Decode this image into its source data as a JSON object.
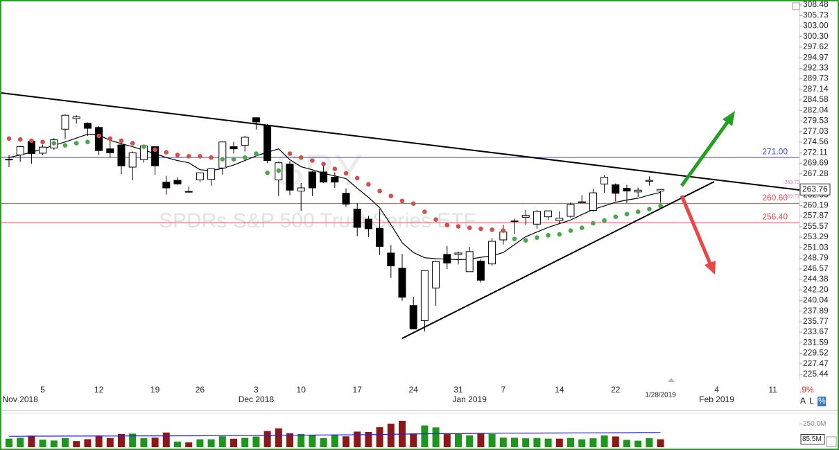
{
  "chart_data": {
    "type": "candlestick",
    "watermark": "SPDRs S&P 500 Trust Series ETF",
    "symbol": "SPY",
    "log_scale": true,
    "categories": [
      null,
      null,
      null,
      "5",
      null,
      null,
      null,
      null,
      "12",
      null,
      null,
      null,
      null,
      "19",
      null,
      null,
      null,
      "26",
      null,
      null,
      null,
      null,
      "3",
      null,
      null,
      null,
      "10",
      null,
      null,
      null,
      null,
      "17",
      null,
      null,
      null,
      null,
      "24",
      null,
      null,
      null,
      "31",
      null,
      null,
      null,
      "7",
      null,
      null,
      null,
      null,
      "14",
      null,
      null,
      null,
      null,
      "22",
      null,
      null,
      null,
      null,
      null,
      null,
      null,
      null,
      "4",
      null,
      null,
      null,
      null,
      "11",
      null
    ],
    "months": [
      null,
      "Nov 2018",
      null,
      null,
      null,
      null,
      null,
      null,
      null,
      null,
      null,
      null,
      null,
      null,
      null,
      null,
      null,
      null,
      null,
      null,
      null,
      null,
      "Dec 2018",
      null,
      null,
      null,
      null,
      null,
      null,
      null,
      null,
      null,
      null,
      null,
      null,
      null,
      null,
      null,
      null,
      null,
      null,
      "Jan 2019",
      null,
      null,
      null,
      null,
      null,
      null,
      null,
      null,
      null,
      null,
      null,
      null,
      null,
      null,
      null,
      null,
      "1/28/2019",
      null,
      null,
      null,
      null,
      "Feb 2019",
      null,
      null,
      null,
      null,
      null,
      null
    ],
    "open": [
      270.5,
      271.6,
      274.8,
      272.0,
      273.2,
      277.6,
      280.1,
      279.0,
      278.0,
      273.0,
      273.9,
      268.8,
      270.5,
      273.5,
      265.4,
      265.8,
      263.2,
      265.9,
      266.0,
      268.6,
      273.5,
      273.8,
      280.3,
      278.4,
      265.9,
      269.5,
      263.4,
      267.7,
      267.7,
      266.5,
      262.9,
      259.4,
      257.2,
      255.2,
      249.9,
      246.7,
      239.0,
      235.97,
      242.6,
      249.6,
      249.6,
      245.98,
      248.2,
      247.6,
      252.7,
      256.8,
      257.6,
      256.1,
      257.7,
      256.9,
      257.8,
      260.8,
      259.1,
      264.98,
      264.8,
      264.0,
      263.2,
      265.6,
      263.4,
      null,
      null,
      null,
      null,
      null,
      null,
      null,
      null,
      null,
      null,
      null
    ],
    "high": [
      271.5,
      273.7,
      275.2,
      274.0,
      275.5,
      281.1,
      280.9,
      279.2,
      278.3,
      275.0,
      274.3,
      272.4,
      274.0,
      273.6,
      266.8,
      266.5,
      264.4,
      267.6,
      268.5,
      274.7,
      274.6,
      276.0,
      280.4,
      278.8,
      269.97,
      270.2,
      265.2,
      267.9,
      269.8,
      267.6,
      264.0,
      260.7,
      257.95,
      259.4,
      251.6,
      249.7,
      240.8,
      246.2,
      248.3,
      251.4,
      250.2,
      251.2,
      248.6,
      253.1,
      255.95,
      257.3,
      259.2,
      259.2,
      259.0,
      258.9,
      260.9,
      262.5,
      263.9,
      266.98,
      265.1,
      264.8,
      264.2,
      266.7,
      263.8,
      null,
      null,
      null,
      null,
      null,
      null,
      null,
      null,
      null,
      null,
      null
    ],
    "low": [
      268.8,
      270.0,
      269.6,
      271.5,
      272.8,
      275.3,
      278.9,
      276.0,
      271.6,
      271.0,
      267.2,
      265.8,
      269.8,
      267.0,
      262.6,
      264.8,
      263.1,
      265.4,
      264.6,
      267.1,
      271.9,
      272.4,
      277.5,
      269.7,
      262.3,
      262.5,
      259.0,
      262.3,
      265.2,
      264.1,
      259.9,
      253.5,
      253.3,
      249.5,
      244.7,
      239.98,
      234.3,
      233.8,
      238.96,
      246.5,
      247.5,
      245.95,
      243.7,
      247.2,
      251.7,
      254.0,
      256.0,
      255.1,
      257.0,
      256.2,
      257.5,
      260.7,
      258.9,
      263.0,
      261.1,
      260.7,
      262.1,
      264.6,
      260.8,
      null,
      null,
      null,
      null,
      null,
      null,
      null,
      null,
      null,
      null,
      null
    ],
    "close": [
      270.6,
      273.5,
      271.9,
      273.4,
      275.1,
      280.9,
      280.5,
      277.8,
      272.6,
      272.1,
      269.1,
      272.1,
      273.7,
      269.1,
      264.1,
      265.0,
      263.3,
      267.5,
      268.4,
      274.6,
      273.0,
      275.7,
      279.3,
      270.3,
      269.8,
      263.6,
      264.1,
      264.1,
      265.4,
      265.4,
      260.5,
      255.4,
      255.1,
      251.3,
      247.2,
      240.7,
      234.3,
      246.2,
      248.1,
      247.8,
      249.9,
      250.2,
      244.2,
      252.4,
      254.4,
      256.8,
      258.0,
      258.9,
      259.0,
      257.4,
      260.4,
      261.0,
      263.0,
      266.5,
      262.9,
      263.4,
      263.6,
      265.8,
      263.76,
      null,
      null,
      null,
      null,
      null,
      null,
      null,
      null,
      null,
      null,
      null
    ],
    "sar": [
      275.4,
      275.2,
      274.9,
      274.6,
      274.3,
      273.8,
      274.3,
      274.6,
      276.0,
      275.4,
      274.9,
      274.3,
      273.5,
      272.8,
      272.2,
      271.6,
      271.3,
      271.3,
      271.0,
      270.6,
      270.6,
      271.0,
      271.9,
      267.5,
      268.0,
      271.9,
      271.0,
      270.3,
      269.5,
      268.4,
      267.4,
      266.3,
      264.9,
      263.4,
      262.3,
      261.2,
      260.6,
      258.8,
      257.1,
      255.9,
      255.6,
      255.3,
      255.1,
      254.9,
      254.7,
      252.9,
      252.6,
      253.2,
      253.7,
      253.9,
      254.7,
      255.3,
      256.3,
      256.9,
      257.7,
      258.3,
      258.8,
      259.4,
      260.1,
      null,
      null,
      null,
      null,
      null,
      null,
      null,
      null,
      null,
      null,
      null
    ],
    "ma": [
      271.0,
      271.6,
      272.2,
      273.0,
      273.8,
      274.6,
      275.5,
      276.4,
      276.2,
      275.0,
      274.2,
      273.5,
      272.7,
      271.9,
      271.0,
      270.3,
      269.8,
      268.2,
      268.0,
      268.5,
      269.3,
      270.3,
      271.4,
      272.2,
      273.0,
      270.5,
      268.9,
      268.2,
      267.4,
      266.8,
      266.2,
      264.0,
      262.0,
      259.7,
      256.0,
      252.1,
      250.0,
      248.9,
      248.7,
      248.6,
      248.5,
      248.6,
      249.0,
      249.3,
      250.0,
      251.7,
      253.4,
      254.4,
      255.4,
      256.2,
      257.0,
      258.2,
      259.3,
      260.1,
      260.9,
      261.4,
      261.8,
      262.5,
      263.1,
      null,
      null,
      null,
      null,
      null,
      null,
      null,
      null,
      null,
      null,
      null
    ],
    "ylim": [
      225.44,
      308.48
    ],
    "yticks": [
      308.48,
      305.73,
      {
        "value": 303.0,
        "label": "303.00"
      },
      {
        "value": 300.3,
        "label": "300.30"
      },
      297.62,
      294.97,
      292.33,
      289.73,
      287.14,
      284.58,
      282.04,
      279.53,
      277.03,
      274.56,
      272.11,
      269.69,
      267.28,
      262.53,
      260.19,
      257.87,
      255.57,
      253.29,
      251.03,
      248.79,
      246.57,
      244.38,
      {
        "value": 242.2,
        "label": "242.20"
      },
      240.04,
      237.89,
      235.77,
      233.67,
      231.59,
      229.52,
      227.47,
      225.44
    ],
    "levels": [
      {
        "value": 271,
        "label": "271.00",
        "color": "#4646ff"
      },
      {
        "value": 260.6,
        "label": "260.60",
        "color": "#e04848"
      },
      {
        "value": 256.4,
        "label": "256.40",
        "color": "#e04848"
      }
    ],
    "side_labels": [
      "263.73",
      "259.71"
    ],
    "colors": {
      "up_fill": "#ffffff",
      "down_fill": "#000000",
      "candle_stroke": "#000000",
      "sar_above": "#d45050",
      "sar_below": "#4aa84a",
      "ma": "#000000",
      "side_labels": "#e070d0"
    },
    "volume": {
      "values": [
        92,
        102,
        124,
        81,
        72,
        98,
        66,
        86,
        125,
        98,
        142,
        146,
        97,
        103,
        158,
        61,
        52,
        85,
        85,
        118,
        91,
        100,
        115,
        174,
        203,
        150,
        143,
        132,
        98,
        137,
        117,
        168,
        164,
        215,
        253,
        284,
        148,
        234,
        213,
        141,
        144,
        127,
        146,
        142,
        103,
        102,
        96,
        97,
        92,
        92,
        100,
        85,
        96,
        126,
        116,
        79,
        70,
        97,
        85.5,
        null,
        null,
        null,
        null,
        null,
        null,
        null,
        null,
        null,
        null,
        null
      ],
      "ma": [
        118,
        118,
        119,
        119,
        119,
        120,
        120,
        120,
        121,
        121,
        121,
        122,
        122,
        122,
        122,
        123,
        123,
        123,
        124,
        124,
        124,
        125,
        125,
        126,
        127,
        128,
        129,
        130,
        131,
        132,
        133,
        134,
        135,
        137,
        139,
        141,
        142,
        144,
        145,
        146,
        147,
        148,
        149,
        150,
        151,
        151,
        152,
        152,
        153,
        153,
        154,
        154,
        155,
        155,
        156,
        156,
        157,
        157,
        158,
        null,
        null,
        null,
        null,
        null,
        null,
        null,
        null,
        null,
        null,
        null
      ],
      "last_label": "85.5M",
      "ylim": [
        0,
        350
      ],
      "yticks": [
        {
          "value": 250,
          "label": "250.0M"
        }
      ],
      "up_color": "#1e961e",
      "down_color": "#8c1818",
      "ma_color": "#2020e0"
    },
    "controls": {
      "change": ".9%",
      "buttons": [
        "A",
        "L",
        "%"
      ]
    }
  }
}
